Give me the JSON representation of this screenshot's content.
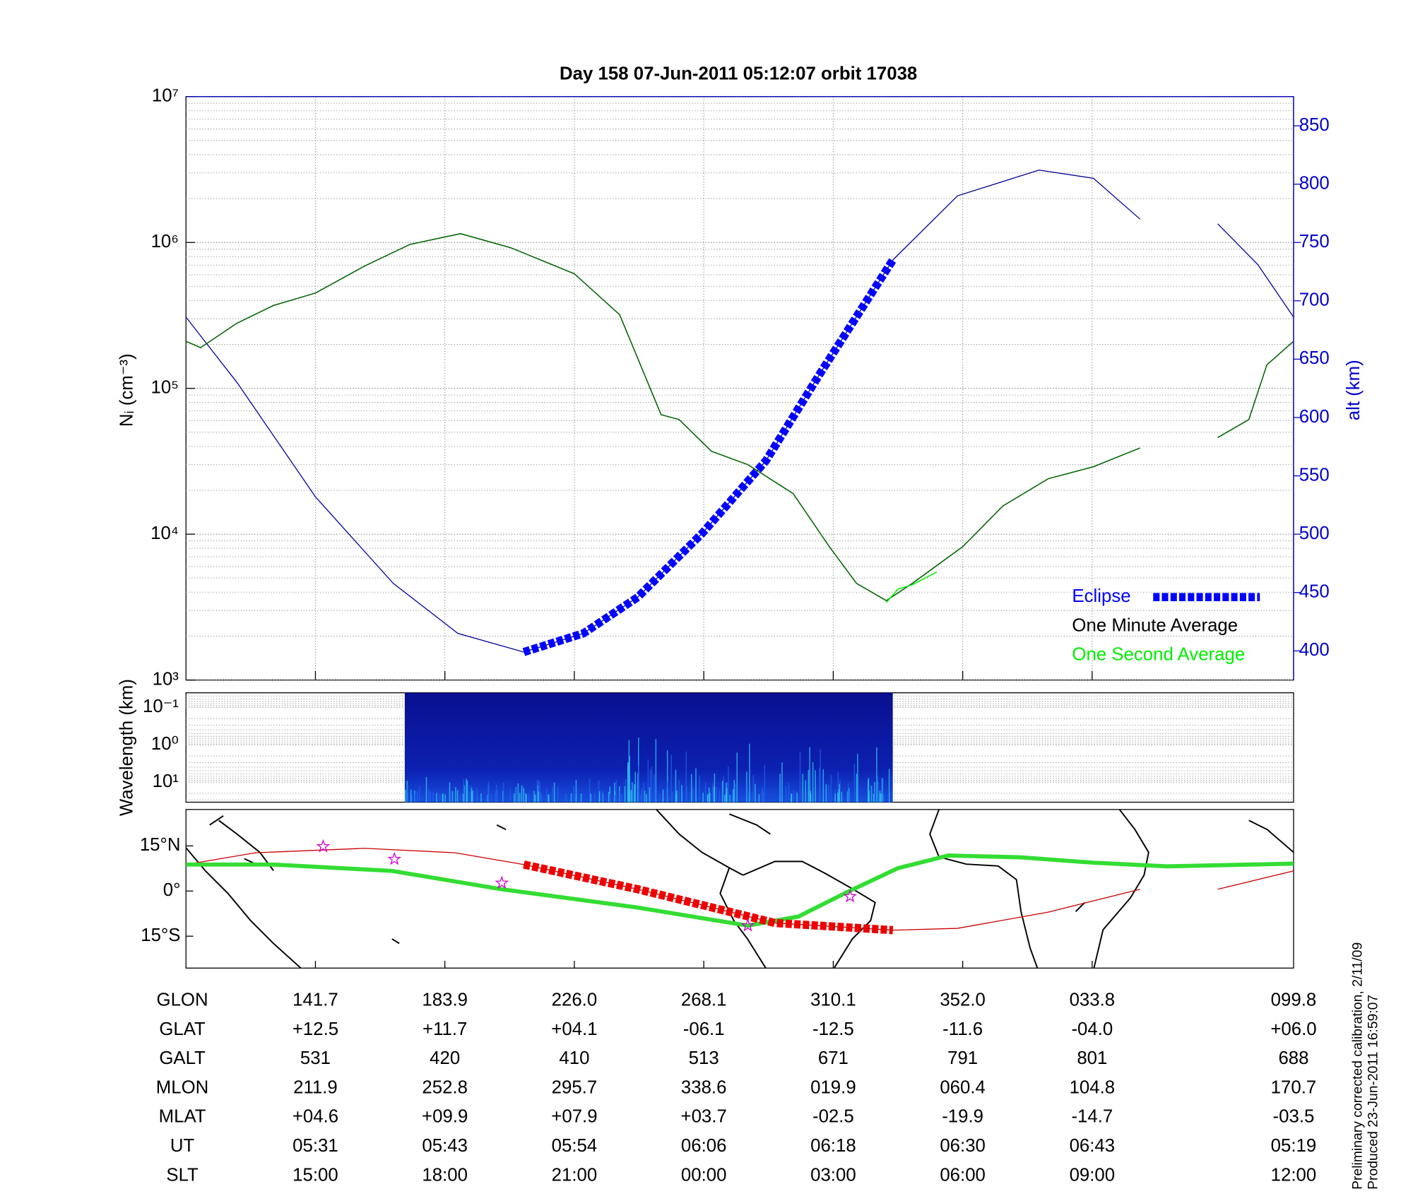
{
  "chart_data": [
    {
      "type": "line",
      "title": "Day 158  07-Jun-2011 05:12:07   orbit 17038",
      "ylabel": "Nᵢ (cm⁻³)",
      "y2label": "alt (km)",
      "y2color": "#0000cc",
      "xlim": [
        0,
        8.556
      ],
      "xticks": [
        1,
        2,
        3,
        4,
        5,
        6,
        7
      ],
      "log_y": true,
      "ylim": [
        1000,
        10000000
      ],
      "yticks": [
        {
          "value": 1000,
          "label": "10³"
        },
        {
          "value": 10000,
          "label": "10⁴"
        },
        {
          "value": 100000,
          "label": "10⁵"
        },
        {
          "value": 1000000,
          "label": "10⁶"
        },
        {
          "value": 10000000,
          "label": "10⁷"
        }
      ],
      "y2lim": [
        375,
        875
      ],
      "y2ticks": [
        400,
        450,
        500,
        550,
        600,
        650,
        700,
        750,
        800,
        850
      ],
      "grid": true,
      "legend": "lower right",
      "altitude": {
        "color": "#000099",
        "axis": "y2",
        "x": [
          0,
          0.394,
          1.0,
          1.6,
          2.1,
          2.61,
          3.07,
          3.49,
          3.99,
          4.48,
          4.9,
          5.46,
          5.96,
          6.59,
          7.01,
          7.37,
          null,
          7.97,
          8.28,
          8.556
        ],
        "values": [
          686,
          630,
          532,
          458,
          415,
          399,
          415,
          446,
          501,
          563,
          638,
          735,
          790,
          812,
          805,
          770,
          null,
          766,
          731,
          686
        ]
      },
      "series": [
        {
          "name": "Eclipse",
          "color": "#0000ff",
          "axis": "y2",
          "style": "dashed",
          "x": [
            2.61,
            3.07,
            3.49,
            3.99,
            4.48,
            4.9,
            5.46
          ],
          "values": [
            399,
            415,
            446,
            501,
            563,
            638,
            735
          ]
        },
        {
          "name": "One Minute Average",
          "color": "#006400",
          "label_color": "#000000",
          "x": [
            0,
            0.113,
            0.394,
            0.676,
            1.0,
            1.38,
            1.73,
            2.12,
            2.51,
            3.0,
            3.35,
            3.67,
            3.81,
            4.06,
            4.34,
            4.69,
            4.97,
            5.18,
            5.41,
            5.61,
            6.0,
            6.31,
            6.66,
            7.01,
            7.37,
            null,
            7.97,
            8.21,
            8.35,
            8.556
          ],
          "values": [
            210000,
            190000,
            280000,
            370000,
            450000,
            690000,
            970000,
            1150000,
            920000,
            610000,
            320000,
            66000,
            61000,
            37000,
            30000,
            19000,
            8200,
            4600,
            3500,
            4600,
            8200,
            15600,
            24000,
            29000,
            39000,
            null,
            46000,
            61000,
            145000,
            210000
          ]
        },
        {
          "name": "One Second Average",
          "color": "#00ee00",
          "x": [
            5.41,
            5.5,
            5.61,
            5.8
          ],
          "values": [
            3400,
            4200,
            4500,
            5500
          ]
        }
      ]
    },
    {
      "type": "spectrogram",
      "ylabel": "Wavelength (km)",
      "log_y": true,
      "inverted": true,
      "ylim": [
        0.041,
        34.6
      ],
      "yticks": [
        {
          "value": 0.1,
          "label": "10⁻¹"
        },
        {
          "value": 1,
          "label": "10⁰"
        },
        {
          "value": 10,
          "label": "10¹"
        }
      ],
      "x": [
        1.69,
        5.46
      ],
      "grid": true
    },
    {
      "type": "map",
      "ylim": [
        -25.6,
        27.1
      ],
      "yticks": [
        {
          "value": 15,
          "label": "15°N"
        },
        {
          "value": 0,
          "label": "0°"
        },
        {
          "value": -15,
          "label": "15°S"
        }
      ],
      "tracks": [
        {
          "color": "#cc0000",
          "style": "thin",
          "x": [
            0,
            0.535,
            1.38,
            2.08,
            2.61,
            3.49,
            4.55,
            5.46,
            5.96,
            6.66,
            7.37,
            null,
            7.97,
            8.556
          ],
          "values": [
            8.8,
            12.7,
            14.2,
            12.7,
            8.8,
            0.6,
            -10.6,
            -13,
            -12.4,
            -7,
            0.6,
            null,
            0.6,
            6.7
          ]
        },
        {
          "color": "#33dd33",
          "style": "thick",
          "x": [
            0,
            0.676,
            1.59,
            2.44,
            3.49,
            4.34,
            4.73,
            5.11,
            5.5,
            5.89,
            6.45,
            7.01,
            7.58,
            8.556
          ],
          "values": [
            8.8,
            8.8,
            6.7,
            0.6,
            -5.5,
            -11.5,
            -8.5,
            -0.3,
            7.6,
            11.8,
            11.2,
            9.4,
            8.2,
            9.1
          ]
        },
        {
          "color": "#ee0000",
          "style": "dashed",
          "x": [
            2.61,
            3.49,
            4.55,
            5.46
          ],
          "values": [
            8.8,
            0.6,
            -10.6,
            -13
          ]
        }
      ],
      "stars": {
        "color": "#cc00cc",
        "x": [
          1.06,
          1.61,
          2.44,
          4.34,
          5.13
        ],
        "values": [
          14.8,
          10.6,
          2.7,
          -11.5,
          -1.8
        ]
      }
    }
  ],
  "table": {
    "rows": [
      {
        "label": "GLON",
        "values": [
          "141.7",
          "183.9",
          "226.0",
          "268.1",
          "310.1",
          "352.0",
          "033.8",
          "099.8"
        ]
      },
      {
        "label": "GLAT",
        "values": [
          "+12.5",
          "+11.7",
          "+04.1",
          "-06.1",
          "-12.5",
          "-11.6",
          "-04.0",
          "+06.0"
        ]
      },
      {
        "label": "GALT",
        "values": [
          "531",
          "420",
          "410",
          "513",
          "671",
          "791",
          "801",
          "688"
        ]
      },
      {
        "label": "MLON",
        "values": [
          "211.9",
          "252.8",
          "295.7",
          "338.6",
          "019.9",
          "060.4",
          "104.8",
          "170.7"
        ]
      },
      {
        "label": "MLAT",
        "values": [
          "+04.6",
          "+09.9",
          "+07.9",
          "+03.7",
          "-02.5",
          "-19.9",
          "-14.7",
          "-03.5"
        ]
      },
      {
        "label": "UT",
        "values": [
          "05:31",
          "05:43",
          "05:54",
          "06:06",
          "06:18",
          "06:30",
          "06:43",
          "05:19"
        ]
      },
      {
        "label": "SLT",
        "values": [
          "15:00",
          "18:00",
          "21:00",
          "00:00",
          "03:00",
          "06:00",
          "09:00",
          "12:00"
        ]
      }
    ]
  },
  "notes": [
    "Preliminary corrected calibration, 2/11/09",
    "Produced 23-Jun-2011 16:59:07"
  ]
}
